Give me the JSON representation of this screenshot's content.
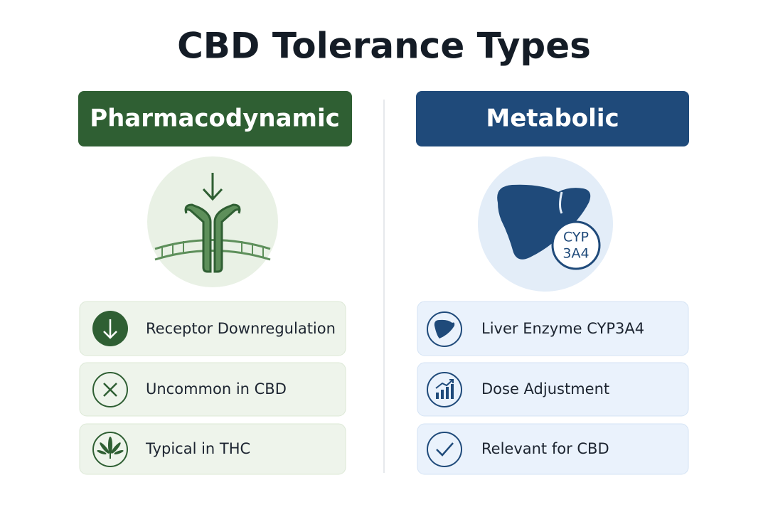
{
  "title": "CBD Tolerance Types",
  "columns": [
    {
      "header": "Pharmacodynamic",
      "items": [
        "Receptor Downregulation",
        "Uncommon in CBD",
        "Typical in THC"
      ]
    },
    {
      "header": "Metabolic",
      "badge": [
        "CYP",
        "3A4"
      ],
      "items": [
        "Liver Enzyme CYP3A4",
        "Dose Adjustment",
        "Relevant for CBD"
      ]
    }
  ]
}
